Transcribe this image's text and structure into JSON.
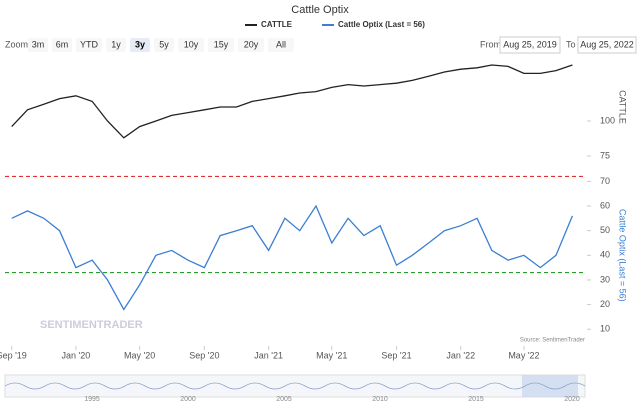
{
  "ui": {
    "zoom_label": "Zoom",
    "zoom_buttons": [
      "3m",
      "6m",
      "YTD",
      "1y",
      "3y",
      "5y",
      "10y",
      "15y",
      "20y",
      "All"
    ],
    "selected_zoom": "3y",
    "from_label": "From",
    "from_date": "Aug 25, 2019",
    "to_label": "To",
    "to_date": "Aug 25, 2022",
    "source": "Source: SentimenTrader",
    "watermark": "SENTIMENTRADER",
    "navigator_labels": [
      "1995",
      "2000",
      "2005",
      "2010",
      "2015",
      "2020"
    ]
  },
  "chart_data": [
    {
      "type": "line",
      "title": "Cattle Optix",
      "y_title": "CATTLE",
      "x": [
        "2019-09",
        "2019-10",
        "2019-11",
        "2019-12",
        "2020-01",
        "2020-02",
        "2020-03",
        "2020-04",
        "2020-05",
        "2020-06",
        "2020-07",
        "2020-08",
        "2020-09",
        "2020-10",
        "2020-11",
        "2020-12",
        "2021-01",
        "2021-02",
        "2021-03",
        "2021-04",
        "2021-05",
        "2021-06",
        "2021-07",
        "2021-08",
        "2021-09",
        "2021-10",
        "2021-11",
        "2021-12",
        "2022-01",
        "2022-02",
        "2022-03",
        "2022-04",
        "2022-05",
        "2022-06",
        "2022-07",
        "2022-08"
      ],
      "xlim": [
        "2019-08-25",
        "2022-08-25"
      ],
      "series": [
        {
          "name": "CATTLE",
          "color": "#222222",
          "values": [
            96,
            108,
            112,
            116,
            118,
            114,
            100,
            88,
            96,
            100,
            104,
            106,
            108,
            110,
            110,
            114,
            116,
            118,
            120,
            121,
            124,
            126,
            125,
            126,
            127,
            129,
            132,
            135,
            137,
            138,
            140,
            139,
            134,
            134,
            136,
            140
          ]
        }
      ],
      "ylim": [
        75,
        145
      ],
      "yticks": [
        75,
        100
      ]
    },
    {
      "type": "line",
      "x": [
        "2019-09",
        "2019-10",
        "2019-11",
        "2019-12",
        "2020-01",
        "2020-02",
        "2020-03",
        "2020-04",
        "2020-05",
        "2020-06",
        "2020-07",
        "2020-08",
        "2020-09",
        "2020-10",
        "2020-11",
        "2020-12",
        "2021-01",
        "2021-02",
        "2021-03",
        "2021-04",
        "2021-05",
        "2021-06",
        "2021-07",
        "2021-08",
        "2021-09",
        "2021-10",
        "2021-11",
        "2021-12",
        "2022-01",
        "2022-02",
        "2022-03",
        "2022-04",
        "2022-05",
        "2022-06",
        "2022-07",
        "2022-08"
      ],
      "xlim": [
        "2019-08-25",
        "2022-08-25"
      ],
      "series": [
        {
          "name": "Cattle Optix (Last = 56)",
          "color": "#3b7fd4",
          "values": [
            55,
            58,
            55,
            50,
            35,
            38,
            30,
            18,
            28,
            40,
            42,
            38,
            35,
            48,
            50,
            52,
            42,
            55,
            50,
            60,
            45,
            55,
            48,
            52,
            36,
            40,
            45,
            50,
            52,
            55,
            42,
            38,
            40,
            35,
            40,
            56
          ]
        }
      ],
      "ylim": [
        4,
        76
      ],
      "yticks": [
        10,
        20,
        30,
        40,
        50,
        60,
        70
      ],
      "xticks": [
        {
          "value": "2019-09",
          "label": "Sep '19"
        },
        {
          "value": "2020-01",
          "label": "Jan '20"
        },
        {
          "value": "2020-05",
          "label": "May '20"
        },
        {
          "value": "2020-09",
          "label": "Sep '20"
        },
        {
          "value": "2021-01",
          "label": "Jan '21"
        },
        {
          "value": "2021-05",
          "label": "May '21"
        },
        {
          "value": "2021-09",
          "label": "Sep '21"
        },
        {
          "value": "2022-01",
          "label": "Jan '22"
        },
        {
          "value": "2022-05",
          "label": "May '22"
        }
      ],
      "reference_lines": [
        {
          "value": 72,
          "color": "#e03030"
        },
        {
          "value": 33,
          "color": "#2a9a2a"
        }
      ]
    }
  ]
}
